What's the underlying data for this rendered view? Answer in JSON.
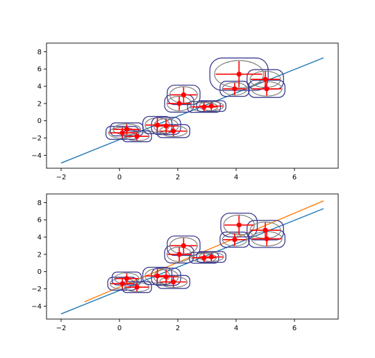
{
  "chart_data": [
    {
      "type": "scatter",
      "title": "",
      "xlabel": "",
      "ylabel": "",
      "xlim": [
        -2.5,
        7.5
      ],
      "ylim": [
        -5.5,
        9
      ],
      "xticks": [
        -2,
        0,
        2,
        4,
        6
      ],
      "yticks": [
        -4,
        -2,
        0,
        2,
        4,
        6,
        8
      ],
      "grid": false,
      "legend": "none",
      "points": {
        "color": "#ff0000",
        "x": [
          0.1,
          0.25,
          0.6,
          1.3,
          1.6,
          1.85,
          2.05,
          2.2,
          2.9,
          3.15,
          3.95,
          4.1,
          5.0,
          5.05
        ],
        "y": [
          -1.4,
          -1.0,
          -1.8,
          -0.5,
          -0.6,
          -1.2,
          2.0,
          3.0,
          1.6,
          1.7,
          3.7,
          5.4,
          4.8,
          3.7
        ],
        "xerr": [
          0.45,
          0.45,
          0.4,
          0.4,
          0.4,
          0.45,
          0.4,
          0.45,
          0.45,
          0.4,
          0.4,
          0.8,
          0.5,
          0.5
        ],
        "yerr": [
          0.6,
          0.6,
          0.5,
          0.8,
          0.8,
          0.6,
          0.8,
          0.9,
          0.5,
          0.5,
          0.7,
          1.5,
          0.9,
          0.8
        ]
      },
      "lines": [
        {
          "color": "#1f77b4",
          "x": [
            -2,
            7
          ],
          "y": [
            -4.9,
            7.3
          ]
        }
      ],
      "colors": {
        "ellipse_inner": "#808080",
        "ellipse_outer": "#3b3b8f",
        "error_bars": "#ff0000"
      }
    },
    {
      "type": "scatter",
      "title": "",
      "xlabel": "",
      "ylabel": "",
      "xlim": [
        -2.5,
        7.5
      ],
      "ylim": [
        -5.5,
        9
      ],
      "xticks": [
        -2,
        0,
        2,
        4,
        6
      ],
      "yticks": [
        -4,
        -2,
        0,
        2,
        4,
        6,
        8
      ],
      "grid": false,
      "legend": "none",
      "points": {
        "color": "#ff0000",
        "x": [
          0.1,
          0.25,
          0.6,
          1.3,
          1.6,
          1.85,
          2.05,
          2.2,
          2.9,
          3.15,
          3.95,
          4.1,
          5.0,
          5.05
        ],
        "y": [
          -1.4,
          -0.8,
          -1.8,
          -0.5,
          -0.6,
          -1.2,
          2.0,
          3.0,
          1.6,
          1.7,
          3.7,
          5.4,
          4.8,
          3.8
        ],
        "xerr": [
          0.4,
          0.4,
          0.4,
          0.4,
          0.4,
          0.45,
          0.4,
          0.45,
          0.4,
          0.4,
          0.4,
          0.5,
          0.5,
          0.5
        ],
        "yerr": [
          0.6,
          0.6,
          0.5,
          0.8,
          0.8,
          0.6,
          0.8,
          0.9,
          0.5,
          0.5,
          0.7,
          1.1,
          0.9,
          0.8
        ]
      },
      "lines": [
        {
          "color": "#1f77b4",
          "x": [
            -2,
            7
          ],
          "y": [
            -4.9,
            7.3
          ]
        },
        {
          "color": "#ff7f0e",
          "x": [
            -1.2,
            7
          ],
          "y": [
            -3.5,
            8.2
          ]
        }
      ],
      "colors": {
        "ellipse_inner": "#808080",
        "ellipse_outer": "#3b3b8f",
        "error_bars": "#ff0000"
      }
    }
  ]
}
